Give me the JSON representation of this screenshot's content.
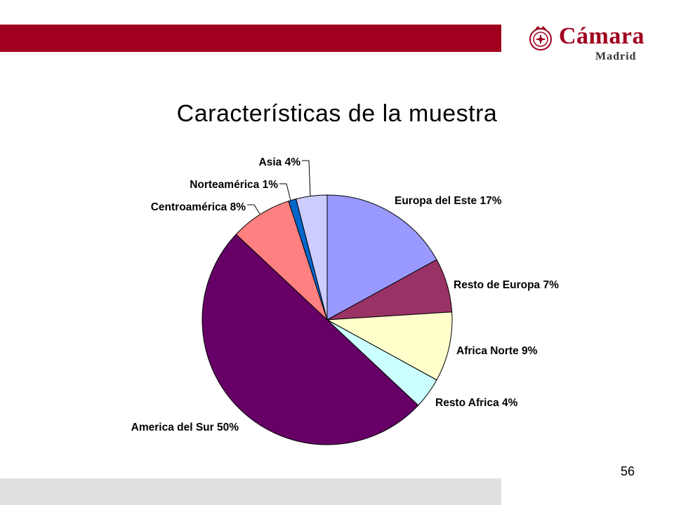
{
  "slide": {
    "title": "Características de la muestra",
    "page_number": "56"
  },
  "logo": {
    "word": "Cámara",
    "subtitle": "Madrid",
    "seal_icon": "chamber-seal-icon"
  },
  "colors": {
    "brand_red": "#a0001e",
    "footer_gray": "#e0e0e0",
    "pie_outline": "#000000"
  },
  "chart_data": {
    "type": "pie",
    "title": "",
    "start_angle_deg": 0,
    "direction": "clockwise",
    "slices": [
      {
        "name": "Europa del Este",
        "value": 17,
        "label": "Europa del Este 17%",
        "color": "#9999ff"
      },
      {
        "name": "Resto de Europa",
        "value": 7,
        "label": "Resto de Europa 7%",
        "color": "#993366"
      },
      {
        "name": "Africa Norte",
        "value": 9,
        "label": "Africa Norte 9%",
        "color": "#ffffcc"
      },
      {
        "name": "Resto Africa",
        "value": 4,
        "label": "Resto Africa 4%",
        "color": "#ccffff"
      },
      {
        "name": "America del Sur",
        "value": 50,
        "label": "America del Sur 50%",
        "color": "#660066"
      },
      {
        "name": "Centroamérica",
        "value": 8,
        "label": "Centroamérica 8%",
        "color": "#ff8080"
      },
      {
        "name": "Norteamérica",
        "value": 1,
        "label": "Norteamérica 1%",
        "color": "#0066cc"
      },
      {
        "name": "Asia",
        "value": 4,
        "label": "Asia 4%",
        "color": "#ccccff"
      }
    ]
  }
}
